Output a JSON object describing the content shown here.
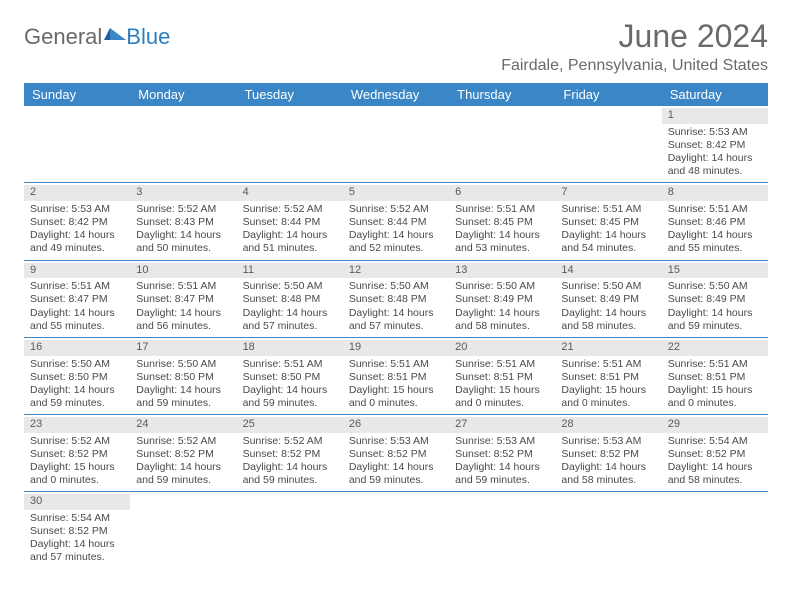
{
  "logo": {
    "text1": "General",
    "text2": "Blue"
  },
  "title": "June 2024",
  "location": "Fairdale, Pennsylvania, United States",
  "colors": {
    "header_bg": "#3b86c6",
    "header_text": "#ffffff",
    "daynum_bg": "#e8e8e8",
    "text": "#4a4a4a",
    "title_text": "#6a6a6a",
    "row_border": "#3b86c6"
  },
  "typography": {
    "title_fontsize": 32,
    "location_fontsize": 16,
    "dayheader_fontsize": 13,
    "cell_fontsize": 10.5
  },
  "day_names": [
    "Sunday",
    "Monday",
    "Tuesday",
    "Wednesday",
    "Thursday",
    "Friday",
    "Saturday"
  ],
  "weeks": [
    [
      null,
      null,
      null,
      null,
      null,
      null,
      {
        "n": "1",
        "sunrise": "Sunrise: 5:53 AM",
        "sunset": "Sunset: 8:42 PM",
        "day1": "Daylight: 14 hours",
        "day2": "and 48 minutes."
      }
    ],
    [
      {
        "n": "2",
        "sunrise": "Sunrise: 5:53 AM",
        "sunset": "Sunset: 8:42 PM",
        "day1": "Daylight: 14 hours",
        "day2": "and 49 minutes."
      },
      {
        "n": "3",
        "sunrise": "Sunrise: 5:52 AM",
        "sunset": "Sunset: 8:43 PM",
        "day1": "Daylight: 14 hours",
        "day2": "and 50 minutes."
      },
      {
        "n": "4",
        "sunrise": "Sunrise: 5:52 AM",
        "sunset": "Sunset: 8:44 PM",
        "day1": "Daylight: 14 hours",
        "day2": "and 51 minutes."
      },
      {
        "n": "5",
        "sunrise": "Sunrise: 5:52 AM",
        "sunset": "Sunset: 8:44 PM",
        "day1": "Daylight: 14 hours",
        "day2": "and 52 minutes."
      },
      {
        "n": "6",
        "sunrise": "Sunrise: 5:51 AM",
        "sunset": "Sunset: 8:45 PM",
        "day1": "Daylight: 14 hours",
        "day2": "and 53 minutes."
      },
      {
        "n": "7",
        "sunrise": "Sunrise: 5:51 AM",
        "sunset": "Sunset: 8:45 PM",
        "day1": "Daylight: 14 hours",
        "day2": "and 54 minutes."
      },
      {
        "n": "8",
        "sunrise": "Sunrise: 5:51 AM",
        "sunset": "Sunset: 8:46 PM",
        "day1": "Daylight: 14 hours",
        "day2": "and 55 minutes."
      }
    ],
    [
      {
        "n": "9",
        "sunrise": "Sunrise: 5:51 AM",
        "sunset": "Sunset: 8:47 PM",
        "day1": "Daylight: 14 hours",
        "day2": "and 55 minutes."
      },
      {
        "n": "10",
        "sunrise": "Sunrise: 5:51 AM",
        "sunset": "Sunset: 8:47 PM",
        "day1": "Daylight: 14 hours",
        "day2": "and 56 minutes."
      },
      {
        "n": "11",
        "sunrise": "Sunrise: 5:50 AM",
        "sunset": "Sunset: 8:48 PM",
        "day1": "Daylight: 14 hours",
        "day2": "and 57 minutes."
      },
      {
        "n": "12",
        "sunrise": "Sunrise: 5:50 AM",
        "sunset": "Sunset: 8:48 PM",
        "day1": "Daylight: 14 hours",
        "day2": "and 57 minutes."
      },
      {
        "n": "13",
        "sunrise": "Sunrise: 5:50 AM",
        "sunset": "Sunset: 8:49 PM",
        "day1": "Daylight: 14 hours",
        "day2": "and 58 minutes."
      },
      {
        "n": "14",
        "sunrise": "Sunrise: 5:50 AM",
        "sunset": "Sunset: 8:49 PM",
        "day1": "Daylight: 14 hours",
        "day2": "and 58 minutes."
      },
      {
        "n": "15",
        "sunrise": "Sunrise: 5:50 AM",
        "sunset": "Sunset: 8:49 PM",
        "day1": "Daylight: 14 hours",
        "day2": "and 59 minutes."
      }
    ],
    [
      {
        "n": "16",
        "sunrise": "Sunrise: 5:50 AM",
        "sunset": "Sunset: 8:50 PM",
        "day1": "Daylight: 14 hours",
        "day2": "and 59 minutes."
      },
      {
        "n": "17",
        "sunrise": "Sunrise: 5:50 AM",
        "sunset": "Sunset: 8:50 PM",
        "day1": "Daylight: 14 hours",
        "day2": "and 59 minutes."
      },
      {
        "n": "18",
        "sunrise": "Sunrise: 5:51 AM",
        "sunset": "Sunset: 8:50 PM",
        "day1": "Daylight: 14 hours",
        "day2": "and 59 minutes."
      },
      {
        "n": "19",
        "sunrise": "Sunrise: 5:51 AM",
        "sunset": "Sunset: 8:51 PM",
        "day1": "Daylight: 15 hours",
        "day2": "and 0 minutes."
      },
      {
        "n": "20",
        "sunrise": "Sunrise: 5:51 AM",
        "sunset": "Sunset: 8:51 PM",
        "day1": "Daylight: 15 hours",
        "day2": "and 0 minutes."
      },
      {
        "n": "21",
        "sunrise": "Sunrise: 5:51 AM",
        "sunset": "Sunset: 8:51 PM",
        "day1": "Daylight: 15 hours",
        "day2": "and 0 minutes."
      },
      {
        "n": "22",
        "sunrise": "Sunrise: 5:51 AM",
        "sunset": "Sunset: 8:51 PM",
        "day1": "Daylight: 15 hours",
        "day2": "and 0 minutes."
      }
    ],
    [
      {
        "n": "23",
        "sunrise": "Sunrise: 5:52 AM",
        "sunset": "Sunset: 8:52 PM",
        "day1": "Daylight: 15 hours",
        "day2": "and 0 minutes."
      },
      {
        "n": "24",
        "sunrise": "Sunrise: 5:52 AM",
        "sunset": "Sunset: 8:52 PM",
        "day1": "Daylight: 14 hours",
        "day2": "and 59 minutes."
      },
      {
        "n": "25",
        "sunrise": "Sunrise: 5:52 AM",
        "sunset": "Sunset: 8:52 PM",
        "day1": "Daylight: 14 hours",
        "day2": "and 59 minutes."
      },
      {
        "n": "26",
        "sunrise": "Sunrise: 5:53 AM",
        "sunset": "Sunset: 8:52 PM",
        "day1": "Daylight: 14 hours",
        "day2": "and 59 minutes."
      },
      {
        "n": "27",
        "sunrise": "Sunrise: 5:53 AM",
        "sunset": "Sunset: 8:52 PM",
        "day1": "Daylight: 14 hours",
        "day2": "and 59 minutes."
      },
      {
        "n": "28",
        "sunrise": "Sunrise: 5:53 AM",
        "sunset": "Sunset: 8:52 PM",
        "day1": "Daylight: 14 hours",
        "day2": "and 58 minutes."
      },
      {
        "n": "29",
        "sunrise": "Sunrise: 5:54 AM",
        "sunset": "Sunset: 8:52 PM",
        "day1": "Daylight: 14 hours",
        "day2": "and 58 minutes."
      }
    ],
    [
      {
        "n": "30",
        "sunrise": "Sunrise: 5:54 AM",
        "sunset": "Sunset: 8:52 PM",
        "day1": "Daylight: 14 hours",
        "day2": "and 57 minutes."
      },
      null,
      null,
      null,
      null,
      null,
      null
    ]
  ]
}
